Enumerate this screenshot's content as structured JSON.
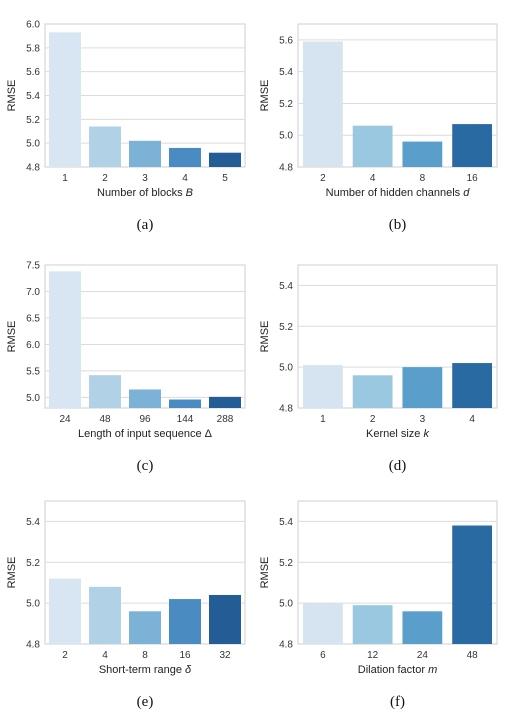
{
  "chart_data": [
    {
      "type": "bar",
      "caption": "(a)",
      "categories": [
        "1",
        "2",
        "3",
        "4",
        "5"
      ],
      "values": [
        5.93,
        5.14,
        5.02,
        4.96,
        4.92
      ],
      "xlabel": "Number of blocks ",
      "xlabel_var": "B",
      "ylabel": "RMSE",
      "ylim": [
        4.8,
        6.0
      ],
      "yticks": [
        "4.8",
        "5.0",
        "5.2",
        "5.4",
        "5.6",
        "5.8",
        "6.0"
      ],
      "grid": true
    },
    {
      "type": "bar",
      "caption": "(b)",
      "categories": [
        "2",
        "4",
        "8",
        "16"
      ],
      "values": [
        5.59,
        5.06,
        4.96,
        5.07
      ],
      "xlabel": "Number of hidden channels ",
      "xlabel_var": "d",
      "ylabel": "RMSE",
      "ylim": [
        4.8,
        5.7
      ],
      "yticks": [
        "4.8",
        "5.0",
        "5.2",
        "5.4",
        "5.6"
      ],
      "grid": true
    },
    {
      "type": "bar",
      "caption": "(c)",
      "categories": [
        "24",
        "48",
        "96",
        "144",
        "288"
      ],
      "values": [
        7.38,
        5.42,
        5.15,
        4.96,
        5.01
      ],
      "xlabel": "Length of input sequence Δ",
      "xlabel_var": "",
      "ylabel": "RMSE",
      "ylim": [
        4.8,
        7.5
      ],
      "yticks": [
        "5.0",
        "5.5",
        "6.0",
        "6.5",
        "7.0",
        "7.5"
      ],
      "grid": true
    },
    {
      "type": "bar",
      "caption": "(d)",
      "categories": [
        "1",
        "2",
        "3",
        "4"
      ],
      "values": [
        5.01,
        4.96,
        5.0,
        5.02
      ],
      "xlabel": "Kernel size ",
      "xlabel_var": "k",
      "ylabel": "RMSE",
      "ylim": [
        4.8,
        5.5
      ],
      "yticks": [
        "4.8",
        "5.0",
        "5.2",
        "5.4"
      ],
      "grid": true
    },
    {
      "type": "bar",
      "caption": "(e)",
      "categories": [
        "2",
        "4",
        "8",
        "16",
        "32"
      ],
      "values": [
        5.12,
        5.08,
        4.96,
        5.02,
        5.04
      ],
      "xlabel": "Short-term range ",
      "xlabel_var": "δ",
      "ylabel": "RMSE",
      "ylim": [
        4.8,
        5.5
      ],
      "yticks": [
        "4.8",
        "5.0",
        "5.2",
        "5.4"
      ],
      "grid": true
    },
    {
      "type": "bar",
      "caption": "(f)",
      "categories": [
        "6",
        "12",
        "24",
        "48"
      ],
      "values": [
        5.0,
        4.99,
        4.96,
        5.38
      ],
      "xlabel": "Dilation factor ",
      "xlabel_var": "m",
      "ylabel": "RMSE",
      "ylim": [
        4.8,
        5.5
      ],
      "yticks": [
        "4.8",
        "5.0",
        "5.2",
        "5.4"
      ],
      "grid": true
    }
  ],
  "palettes": {
    "4": [
      "#d6e3f1",
      "#9ac8e0",
      "#5a9fcb",
      "#2a6aa3"
    ],
    "5": [
      "#d8e5f2",
      "#b1d1e6",
      "#7bb2d6",
      "#4a8cc2",
      "#245d96"
    ]
  }
}
